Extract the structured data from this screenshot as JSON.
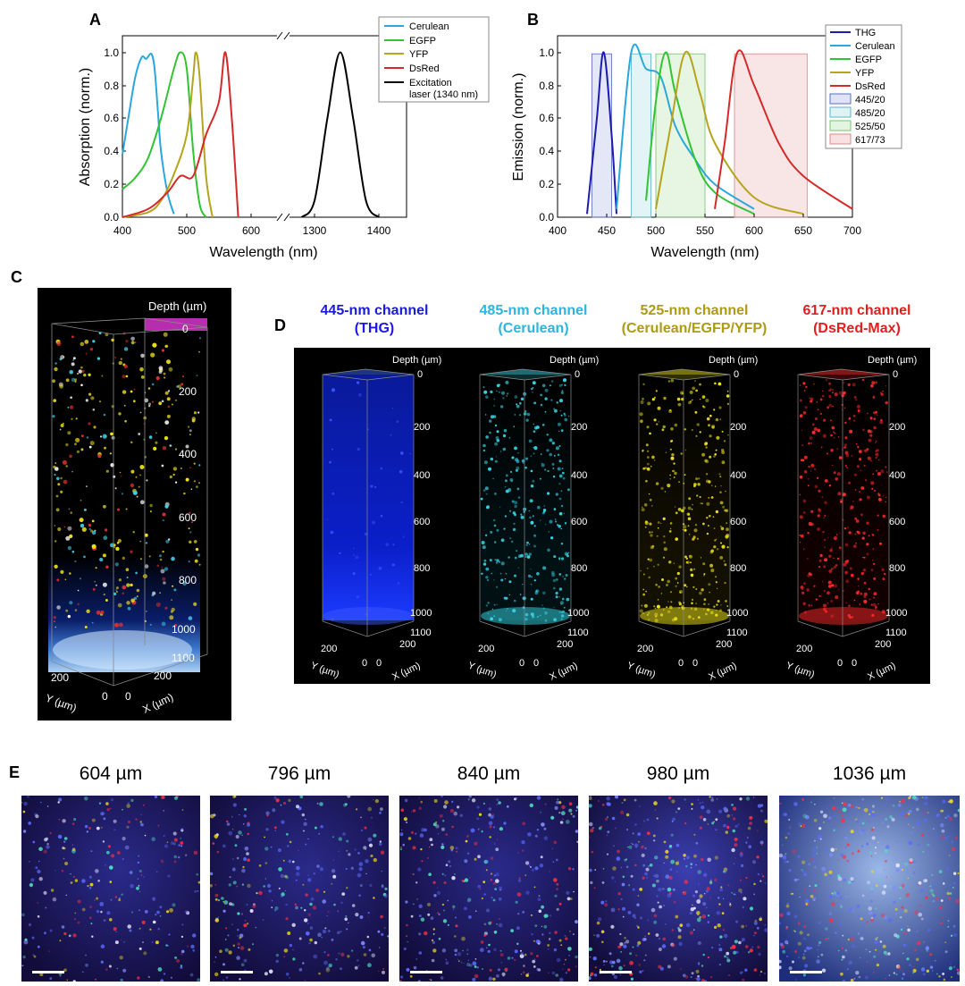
{
  "panel_a": {
    "letter": "A",
    "ylabel": "Absorption (norm.)",
    "xlabel": "Wavelength (nm)",
    "yticks": [
      "0.0",
      "0.2",
      "0.4",
      "0.6",
      "0.8",
      "1.0"
    ],
    "xticks_left": [
      "400",
      "500",
      "600"
    ],
    "xticks_right": [
      "1300",
      "1400"
    ],
    "legend": [
      {
        "label": "Cerulean",
        "color": "#2aa7dc"
      },
      {
        "label": "EGFP",
        "color": "#33c333"
      },
      {
        "label": "YFP",
        "color": "#b5a41c"
      },
      {
        "label": "DsRed",
        "color": "#d62a2a"
      },
      {
        "label": "Excitation",
        "label2": "laser (1340 nm)",
        "color": "#000000"
      }
    ]
  },
  "panel_b": {
    "letter": "B",
    "ylabel": "Emission (norm.)",
    "xlabel": "Wavelength (nm)",
    "yticks": [
      "0.0",
      "0.2",
      "0.4",
      "0.6",
      "0.8",
      "1.0"
    ],
    "xticks": [
      "400",
      "450",
      "500",
      "550",
      "600",
      "650",
      "700"
    ],
    "legend": [
      {
        "label": "THG",
        "color": "#1c1cb0",
        "kind": "line"
      },
      {
        "label": "Cerulean",
        "color": "#2aa7dc",
        "kind": "line"
      },
      {
        "label": "EGFP",
        "color": "#33c333",
        "kind": "line"
      },
      {
        "label": "YFP",
        "color": "#b5a41c",
        "kind": "line"
      },
      {
        "label": "DsRed",
        "color": "#d62a2a",
        "kind": "line"
      },
      {
        "label": "445/20",
        "color": "#dfe3f5",
        "kind": "box"
      },
      {
        "label": "485/20",
        "color": "#dff3f5",
        "kind": "box"
      },
      {
        "label": "525/50",
        "color": "#e2f5df",
        "kind": "box"
      },
      {
        "label": "617/73",
        "color": "#f7e1e1",
        "kind": "box"
      }
    ]
  },
  "chart_data": [
    {
      "type": "line",
      "title": "A",
      "xlabel": "Wavelength (nm)",
      "ylabel": "Absorption (norm.)",
      "ylim": [
        0,
        1.1
      ],
      "x_break": [
        650,
        1260
      ],
      "series": [
        {
          "name": "Cerulean",
          "x": [
            400,
            410,
            420,
            430,
            437,
            445,
            450,
            455,
            460,
            470,
            480
          ],
          "y": [
            0.38,
            0.62,
            0.85,
            0.97,
            0.96,
            0.99,
            0.9,
            0.65,
            0.4,
            0.15,
            0.02
          ]
        },
        {
          "name": "EGFP",
          "x": [
            400,
            420,
            440,
            460,
            480,
            490,
            500,
            510,
            520,
            530
          ],
          "y": [
            0.17,
            0.24,
            0.36,
            0.6,
            0.9,
            1.0,
            0.9,
            0.4,
            0.08,
            0.0
          ]
        },
        {
          "name": "YFP",
          "x": [
            400,
            440,
            460,
            480,
            500,
            510,
            514,
            520,
            530,
            540
          ],
          "y": [
            0.0,
            0.03,
            0.1,
            0.26,
            0.5,
            0.85,
            1.0,
            0.85,
            0.25,
            0.0
          ]
        },
        {
          "name": "DsRed",
          "x": [
            400,
            440,
            470,
            490,
            510,
            530,
            550,
            560,
            570,
            580
          ],
          "y": [
            0.0,
            0.05,
            0.15,
            0.25,
            0.25,
            0.5,
            0.7,
            1.0,
            0.6,
            0.0
          ]
        },
        {
          "name": "Excitation laser (1340 nm)",
          "x": [
            1280,
            1300,
            1320,
            1340,
            1360,
            1380,
            1400
          ],
          "y": [
            0.0,
            0.1,
            0.6,
            1.0,
            0.6,
            0.1,
            0.0
          ]
        }
      ]
    },
    {
      "type": "line",
      "title": "B",
      "xlabel": "Wavelength (nm)",
      "ylabel": "Emission (norm.)",
      "ylim": [
        0,
        1.1
      ],
      "xlim": [
        400,
        700
      ],
      "series": [
        {
          "name": "THG",
          "x": [
            430,
            440,
            447,
            455,
            460
          ],
          "y": [
            0.02,
            0.6,
            1.0,
            0.5,
            0.02
          ]
        },
        {
          "name": "Cerulean",
          "x": [
            460,
            475,
            490,
            505,
            520,
            540,
            560,
            600
          ],
          "y": [
            0.05,
            1.0,
            0.9,
            0.85,
            0.55,
            0.35,
            0.2,
            0.05
          ]
        },
        {
          "name": "EGFP",
          "x": [
            490,
            500,
            510,
            520,
            540,
            560,
            600
          ],
          "y": [
            0.1,
            0.7,
            1.0,
            0.75,
            0.35,
            0.15,
            0.02
          ]
        },
        {
          "name": "YFP",
          "x": [
            500,
            515,
            530,
            545,
            560,
            600,
            650
          ],
          "y": [
            0.05,
            0.55,
            1.0,
            0.75,
            0.45,
            0.12,
            0.02
          ]
        },
        {
          "name": "DsRed",
          "x": [
            560,
            570,
            583,
            600,
            625,
            650,
            700
          ],
          "y": [
            0.05,
            0.45,
            1.0,
            0.8,
            0.45,
            0.25,
            0.05
          ]
        }
      ],
      "filters": [
        {
          "name": "445/20",
          "range": [
            435,
            455
          ]
        },
        {
          "name": "485/20",
          "range": [
            475,
            495
          ]
        },
        {
          "name": "525/50",
          "range": [
            500,
            550
          ]
        },
        {
          "name": "617/73",
          "range": [
            580,
            654
          ]
        }
      ]
    }
  ],
  "panel_c": {
    "letter": "C",
    "depth_label": "Depth (µm)",
    "depth_ticks": [
      "0",
      "200",
      "400",
      "600",
      "800",
      "1000",
      "1100"
    ],
    "y_axis": "Y (µm)",
    "x_axis": "X (µm)",
    "y_val": "200",
    "x_val": "200",
    "zero1": "0",
    "zero2": "0"
  },
  "panel_d": {
    "letter": "D",
    "depth_ticks": [
      "0",
      "200",
      "400",
      "600",
      "800",
      "1000",
      "1100"
    ],
    "channels": [
      {
        "title": "445-nm channel",
        "subtitle": "(THG)",
        "color": "#1a1ae0",
        "depth_label": "Depth (µm)",
        "y_axis": "Y (µm)",
        "x_axis": "X (µm)",
        "y_val": "200",
        "x_val": "200",
        "zero1": "0",
        "zero2": "0"
      },
      {
        "title": "485-nm channel",
        "subtitle": "(Cerulean)",
        "color": "#2ab6e0",
        "depth_label": "Depth (µm)",
        "y_axis": "Y (µm)",
        "x_axis": "X (µm)",
        "y_val": "200",
        "x_val": "200",
        "zero1": "0",
        "zero2": "0"
      },
      {
        "title": "525-nm channel",
        "subtitle": "(Cerulean/EGFP/YFP)",
        "color": "#b09a12",
        "depth_label": "Depth (µm)",
        "y_axis": "Y (µm)",
        "x_axis": "X (µm)",
        "y_val": "200",
        "x_val": "200",
        "zero1": "0",
        "zero2": "0"
      },
      {
        "title": "617-nm channel",
        "subtitle": "(DsRed-Max)",
        "color": "#e02020",
        "depth_label": "Depth (µm)",
        "y_axis": "Y (µm)",
        "x_axis": "X (µm)",
        "y_val": "200",
        "x_val": "200",
        "zero1": "0",
        "zero2": "0"
      }
    ]
  },
  "panel_e": {
    "letter": "E",
    "images": [
      {
        "label": "604 µm"
      },
      {
        "label": "796 µm"
      },
      {
        "label": "840 µm"
      },
      {
        "label": "980 µm"
      },
      {
        "label": "1036 µm"
      }
    ]
  }
}
